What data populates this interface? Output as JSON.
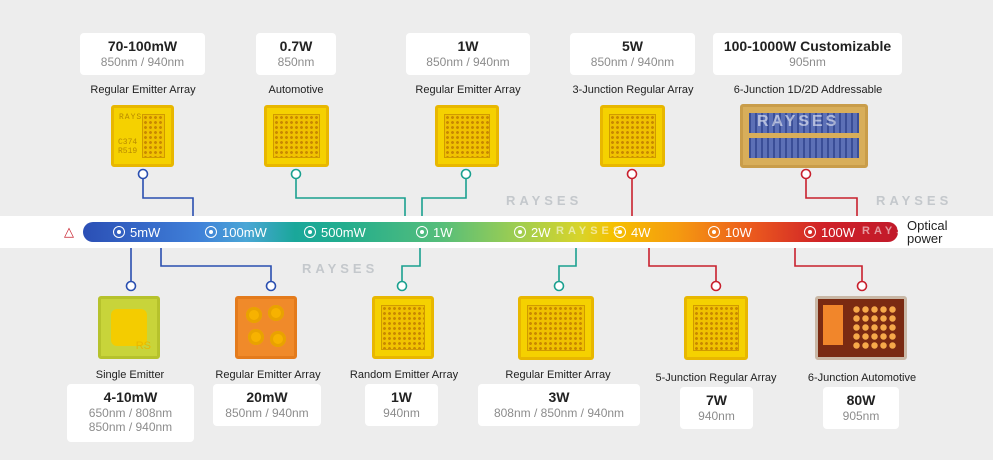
{
  "brand": {
    "watermark": "RAYSES"
  },
  "scale": {
    "ticks": [
      "5mW",
      "100mW",
      "500mW",
      "1W",
      "2W",
      "4W",
      "10W",
      "100W"
    ],
    "axis_label": "Optical power",
    "axis_label_line1": "Optical",
    "axis_label_line2": "power",
    "laser_icon": "laser-warning-icon"
  },
  "top_products": [
    {
      "power": "70-100mW",
      "wavelength": "850nm / 940nm",
      "type": "Regular Emitter Array",
      "connector_color": "#2a4fb0"
    },
    {
      "power": "0.7W",
      "wavelength": "850nm",
      "type": "Automotive",
      "connector_color": "#1aa08f"
    },
    {
      "power": "1W",
      "wavelength": "850nm / 940nm",
      "type": "Regular Emitter Array",
      "connector_color": "#1aa08f"
    },
    {
      "power": "5W",
      "wavelength": "850nm / 940nm",
      "type": "3-Junction Regular Array",
      "connector_color": "#c8202d"
    },
    {
      "power": "100-1000W Customizable",
      "wavelength": "905nm",
      "type": "6-Junction 1D/2D Addressable",
      "connector_color": "#c8202d"
    }
  ],
  "bottom_products": [
    {
      "power": "4-10mW",
      "wavelength": "650nm / 808nm",
      "wavelength2": "850nm / 940nm",
      "type": "Single Emitter",
      "connector_color": "#2a4fb0"
    },
    {
      "power": "20mW",
      "wavelength": "850nm / 940nm",
      "type": "Regular Emitter Array",
      "connector_color": "#2a4fb0"
    },
    {
      "power": "1W",
      "wavelength": "940nm",
      "type": "Random Emitter Array",
      "connector_color": "#1aa08f"
    },
    {
      "power": "3W",
      "wavelength": "808nm / 850nm / 940nm",
      "type": "Regular Emitter Array",
      "connector_color": "#1aa08f"
    },
    {
      "power": "7W",
      "wavelength": "940nm",
      "type": "5-Junction Regular Array",
      "connector_color": "#c8202d"
    },
    {
      "power": "80W",
      "wavelength": "905nm",
      "type": "6-Junction Automotive",
      "connector_color": "#c8202d"
    }
  ],
  "chip_marks": {
    "rs": "RS",
    "c374": "C374",
    "r519": "R519",
    "rays": "RAYS"
  }
}
